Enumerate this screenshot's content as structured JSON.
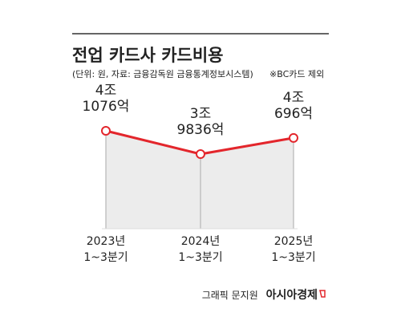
{
  "chart_data": {
    "type": "line",
    "title": "전업 카드사 카드비용",
    "subtitle": "(단위: 원, 자료: 금융감독원 금융통계정보시스템)",
    "note": "※BC카드 제외",
    "categories": [
      "2023년\n1~3분기",
      "2024년\n1~3분기",
      "2025년\n1~3분기"
    ],
    "values": [
      41076,
      39836,
      40696
    ],
    "value_labels": [
      "4조\n1076억",
      "3조\n9836억",
      "4조\n696억"
    ],
    "color": "#e3262c",
    "credit": "그래픽 문지원",
    "source": "아시아경제"
  }
}
